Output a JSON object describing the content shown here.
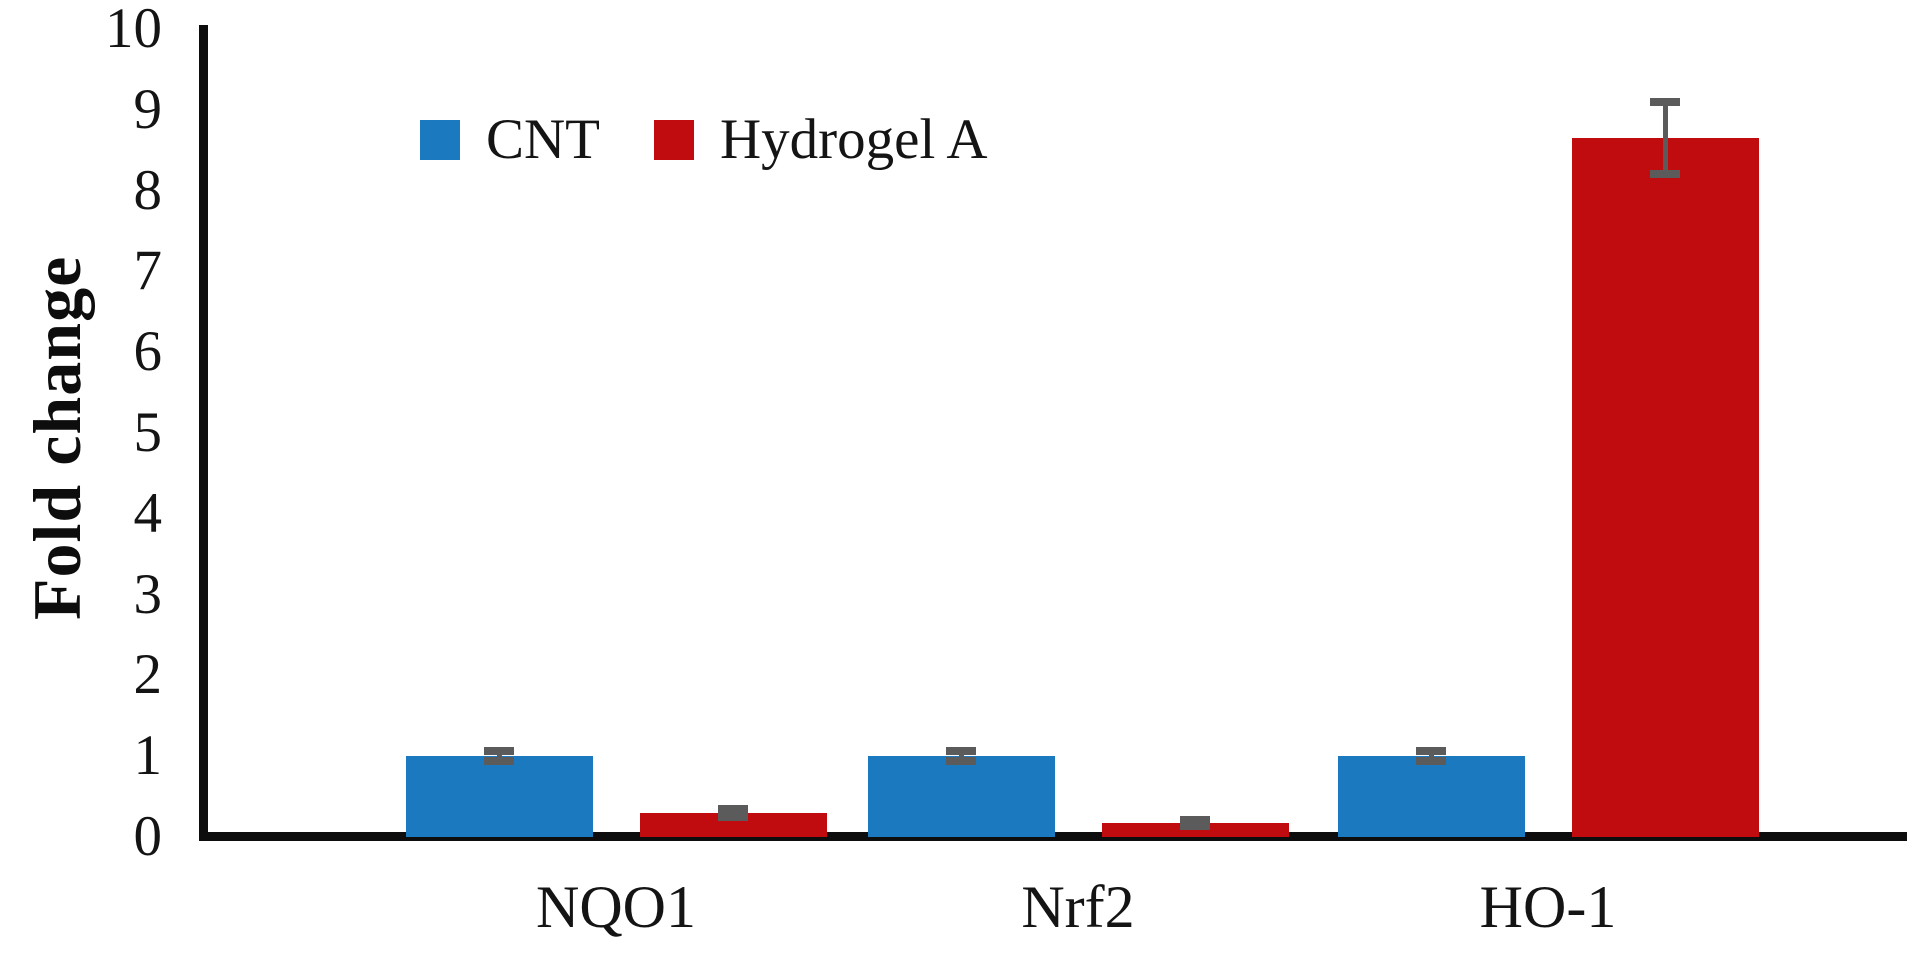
{
  "figure": {
    "background": "#ffffff",
    "text_color": "#141414",
    "axis_color": "#0d0d0d"
  },
  "chart_data": {
    "type": "bar",
    "title": "",
    "xlabel": "",
    "ylabel": "Fold change",
    "categories": [
      "NQO1",
      "Nrf2",
      "HO-1"
    ],
    "series": [
      {
        "name": "CNT",
        "color": "#1b79c0",
        "values": [
          1.0,
          1.0,
          1.0
        ],
        "errors": [
          0.06,
          0.06,
          0.06
        ]
      },
      {
        "name": "Hydrogel A",
        "color": "#c00b0f",
        "values": [
          0.3,
          0.17,
          8.65
        ],
        "errors": [
          0.05,
          0.04,
          0.45
        ]
      }
    ],
    "ylim": [
      0,
      10
    ],
    "yticks": [
      0,
      1,
      2,
      3,
      4,
      5,
      6,
      7,
      8,
      9,
      10
    ],
    "grid": false,
    "legend_position": "inside-top-left",
    "error_bar_color": "#5b5b5b"
  }
}
